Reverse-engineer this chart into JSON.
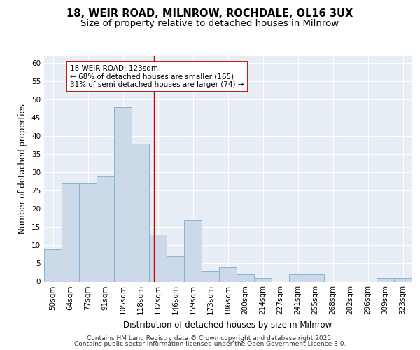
{
  "title1": "18, WEIR ROAD, MILNROW, ROCHDALE, OL16 3UX",
  "title2": "Size of property relative to detached houses in Milnrow",
  "xlabel": "Distribution of detached houses by size in Milnrow",
  "ylabel": "Number of detached properties",
  "categories": [
    "50sqm",
    "64sqm",
    "77sqm",
    "91sqm",
    "105sqm",
    "118sqm",
    "132sqm",
    "146sqm",
    "159sqm",
    "173sqm",
    "186sqm",
    "200sqm",
    "214sqm",
    "227sqm",
    "241sqm",
    "255sqm",
    "268sqm",
    "282sqm",
    "296sqm",
    "309sqm",
    "323sqm"
  ],
  "values": [
    9,
    27,
    27,
    29,
    48,
    38,
    13,
    7,
    17,
    3,
    4,
    2,
    1,
    0,
    2,
    2,
    0,
    0,
    0,
    1,
    1
  ],
  "bar_color": "#ccd9e8",
  "bar_edge_color": "#8ab4d4",
  "vline_x": 5.77,
  "vline_color": "#cc0000",
  "annotation_text": "18 WEIR ROAD: 123sqm\n← 68% of detached houses are smaller (165)\n31% of semi-detached houses are larger (74) →",
  "annotation_box_facecolor": "#ffffff",
  "annotation_box_edgecolor": "#cc0000",
  "ylim": [
    0,
    62
  ],
  "yticks": [
    0,
    5,
    10,
    15,
    20,
    25,
    30,
    35,
    40,
    45,
    50,
    55,
    60
  ],
  "bg_color": "#e8eef5",
  "grid_color": "#ffffff",
  "footer_text1": "Contains HM Land Registry data © Crown copyright and database right 2025.",
  "footer_text2": "Contains public sector information licensed under the Open Government Licence 3.0.",
  "title_fontsize": 10.5,
  "subtitle_fontsize": 9.5,
  "axis_label_fontsize": 8.5,
  "tick_fontsize": 7.5,
  "annotation_fontsize": 7.5,
  "footer_fontsize": 6.5
}
